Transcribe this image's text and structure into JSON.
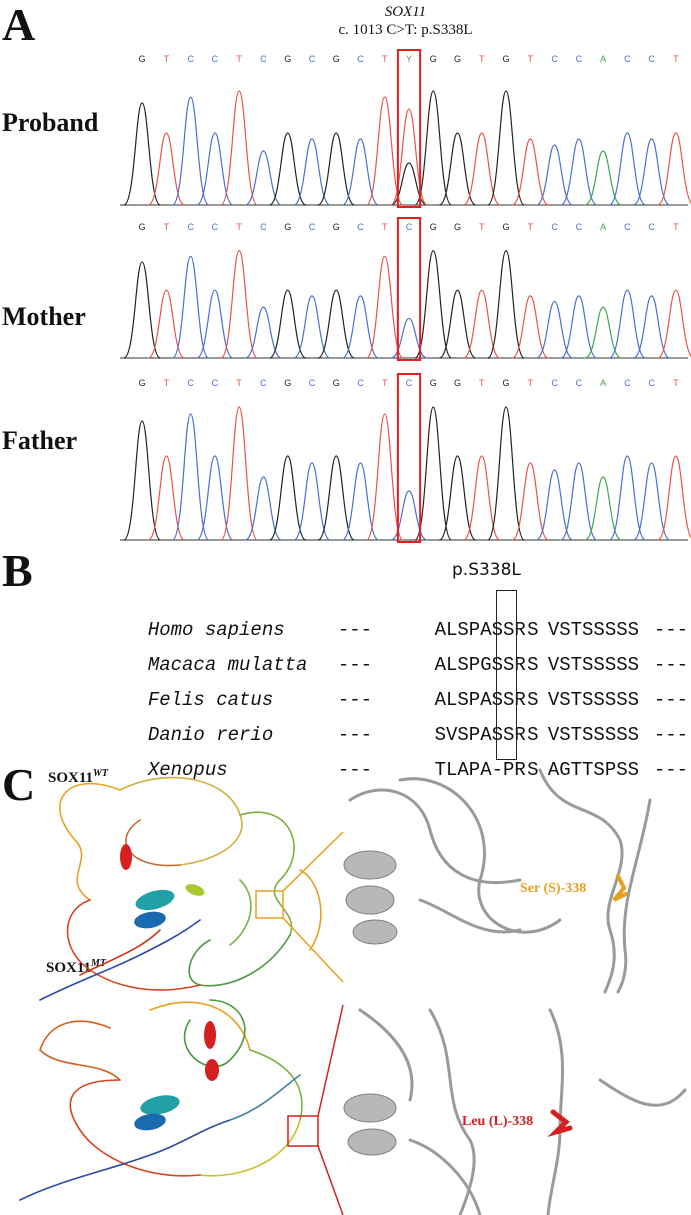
{
  "panels": {
    "a": {
      "letter": "A",
      "gene": "SOX11",
      "variant": "c. 1013 C>T: p.S338L",
      "tracks": [
        {
          "label": "Proband",
          "bases": [
            "G",
            "T",
            "C",
            "C",
            "T",
            "C",
            "G",
            "C",
            "G",
            "C",
            "T",
            "Y",
            "G",
            "G",
            "T",
            "G",
            "T",
            "C",
            "C",
            "A",
            "C",
            "C",
            "T"
          ]
        },
        {
          "label": "Mother",
          "bases": [
            "G",
            "T",
            "C",
            "C",
            "T",
            "C",
            "G",
            "C",
            "G",
            "C",
            "T",
            "C",
            "G",
            "G",
            "T",
            "G",
            "T",
            "C",
            "C",
            "A",
            "C",
            "C",
            "T"
          ]
        },
        {
          "label": "Father",
          "bases": [
            "G",
            "T",
            "C",
            "C",
            "T",
            "C",
            "G",
            "C",
            "G",
            "C",
            "T",
            "C",
            "G",
            "G",
            "T",
            "G",
            "T",
            "C",
            "C",
            "A",
            "C",
            "C",
            "T"
          ]
        }
      ],
      "base_colors": {
        "G": "#222222",
        "T": "#e8534a",
        "C": "#4a6fcf",
        "A": "#3aa84a",
        "Y": "#7a7a7a"
      },
      "highlight_color": "#e02020"
    },
    "b": {
      "letter": "B",
      "site": "p.S338L",
      "rows": [
        {
          "species": "Homo sapiens",
          "left_gap": "---",
          "seq_left": "ALSPASSR",
          "residue": "S",
          "seq_right": "VSTSSSSS",
          "right_gap": "---"
        },
        {
          "species": "Macaca mulatta",
          "left_gap": "---",
          "seq_left": "ALSPGSSR",
          "residue": "S",
          "seq_right": "VSTSSSSS",
          "right_gap": "---"
        },
        {
          "species": "Felis catus",
          "left_gap": "---",
          "seq_left": "ALSPASSR",
          "residue": "S",
          "seq_right": "VSTSSSSS",
          "right_gap": "---"
        },
        {
          "species": "Danio rerio",
          "left_gap": "---",
          "seq_left": "SVSPASSR",
          "residue": "S",
          "seq_right": "VSTSSSSS",
          "right_gap": "---"
        },
        {
          "species": "Xenopus",
          "left_gap": "---",
          "seq_left": "TLAPA-PR",
          "residue": "S",
          "seq_right": "AGTTSPSS",
          "right_gap": "---"
        }
      ]
    },
    "c": {
      "letter": "C",
      "wt": {
        "label": "SOX11",
        "sup": "WT",
        "residue_label": "Ser (S)-338",
        "color": "#e8a020"
      },
      "mt": {
        "label": "SOX11",
        "sup": "MT",
        "residue_label": "Leu (L)-338",
        "color": "#d42020"
      }
    }
  }
}
